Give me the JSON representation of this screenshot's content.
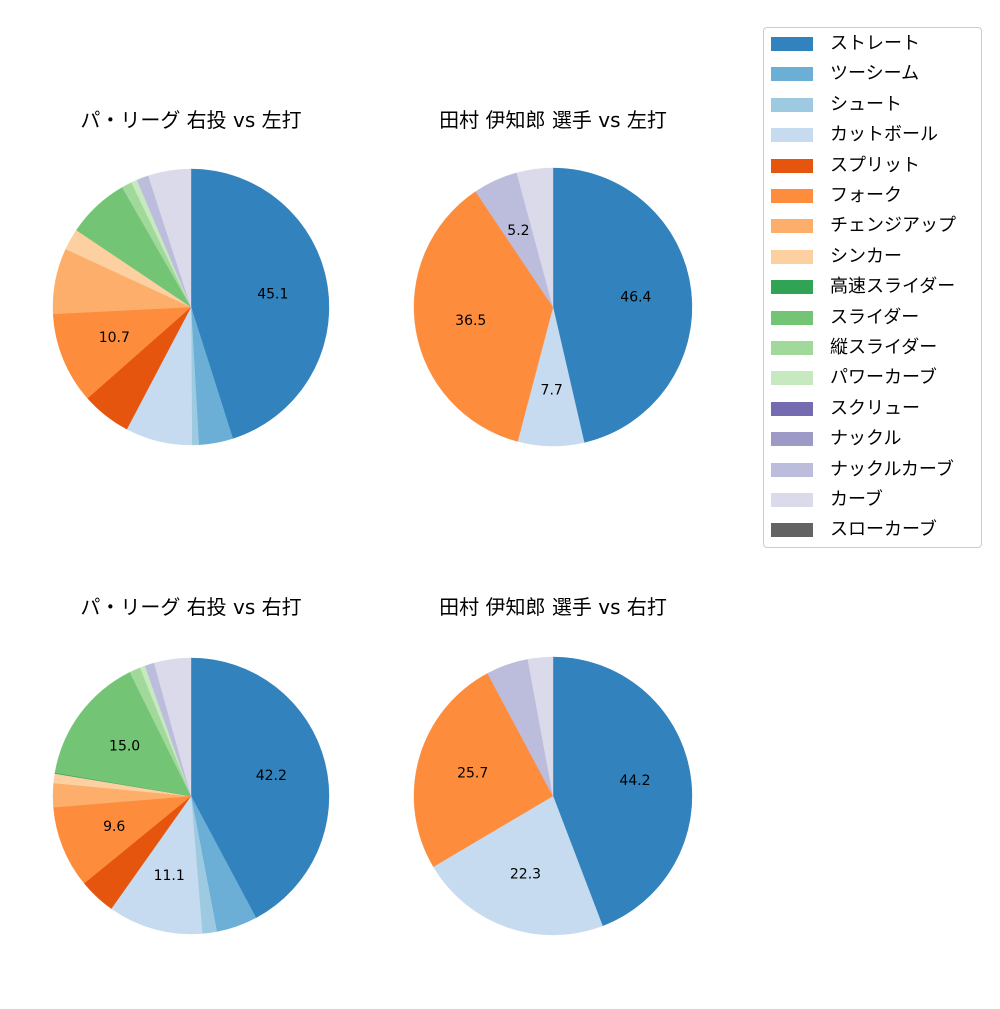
{
  "legend": {
    "items": [
      {
        "label": "ストレート",
        "color": "#3182bd"
      },
      {
        "label": "ツーシーム",
        "color": "#6baed6"
      },
      {
        "label": "シュート",
        "color": "#9ecae1"
      },
      {
        "label": "カットボール",
        "color": "#c6dbef"
      },
      {
        "label": "スプリット",
        "color": "#e6550d"
      },
      {
        "label": "フォーク",
        "color": "#fd8d3c"
      },
      {
        "label": "チェンジアップ",
        "color": "#fdae6b"
      },
      {
        "label": "シンカー",
        "color": "#fdd0a2"
      },
      {
        "label": "高速スライダー",
        "color": "#31a354"
      },
      {
        "label": "スライダー",
        "color": "#74c476"
      },
      {
        "label": "縦スライダー",
        "color": "#a1d99b"
      },
      {
        "label": "パワーカーブ",
        "color": "#c7e9c0"
      },
      {
        "label": "スクリュー",
        "color": "#756bb1"
      },
      {
        "label": "ナックル",
        "color": "#9e9ac8"
      },
      {
        "label": "ナックルカーブ",
        "color": "#bcbddc"
      },
      {
        "label": "カーブ",
        "color": "#dadaeb"
      },
      {
        "label": "スローカーブ",
        "color": "#636363"
      }
    ]
  },
  "chart_data": [
    {
      "type": "pie",
      "title": "パ・リーグ 右投 vs 左打",
      "categories": [
        "ストレート",
        "ツーシーム",
        "シュート",
        "カットボール",
        "スプリット",
        "フォーク",
        "チェンジアップ",
        "シンカー",
        "高速スライダー",
        "スライダー",
        "縦スライダー",
        "パワーカーブ",
        "スクリュー",
        "ナックル",
        "ナックルカーブ",
        "カーブ",
        "スローカーブ"
      ],
      "values": [
        45.1,
        4.0,
        0.8,
        7.8,
        5.8,
        10.7,
        7.7,
        2.5,
        0.0,
        7.3,
        1.2,
        0.7,
        0.0,
        0.0,
        1.4,
        5.0,
        0.0
      ],
      "labeled_values": [
        45.1,
        10.7
      ],
      "start_angle": 90,
      "direction": "clockwise"
    },
    {
      "type": "pie",
      "title": "田村 伊知郎 選手 vs 左打",
      "categories": [
        "ストレート",
        "カットボール",
        "フォーク",
        "ナックルカーブ",
        "カーブ"
      ],
      "values": [
        46.4,
        7.7,
        36.5,
        5.2,
        4.2
      ],
      "labeled_values": [
        46.4,
        7.7,
        36.5,
        5.2
      ],
      "start_angle": 90,
      "direction": "clockwise"
    },
    {
      "type": "pie",
      "title": "パ・リーグ 右投 vs 右打",
      "categories": [
        "ストレート",
        "ツーシーム",
        "シュート",
        "カットボール",
        "スプリット",
        "フォーク",
        "チェンジアップ",
        "シンカー",
        "高速スライダー",
        "スライダー",
        "縦スライダー",
        "パワーカーブ",
        "スクリュー",
        "ナックル",
        "ナックルカーブ",
        "カーブ",
        "スローカーブ"
      ],
      "values": [
        42.2,
        4.8,
        1.7,
        11.1,
        4.3,
        9.6,
        2.8,
        1.1,
        0.1,
        15.0,
        1.3,
        0.6,
        0.0,
        0.0,
        1.1,
        4.3,
        0.0
      ],
      "labeled_values": [
        42.2,
        11.1,
        9.6,
        15.0
      ],
      "start_angle": 90,
      "direction": "clockwise"
    },
    {
      "type": "pie",
      "title": "田村 伊知郎 選手 vs 右打",
      "categories": [
        "ストレート",
        "カットボール",
        "フォーク",
        "ナックルカーブ",
        "カーブ"
      ],
      "values": [
        44.2,
        22.3,
        25.7,
        4.9,
        2.9
      ],
      "labeled_values": [
        44.2,
        22.3,
        25.7
      ],
      "start_angle": 90,
      "direction": "clockwise"
    }
  ],
  "panels": [
    {
      "title": "パ・リーグ 右投 vs 左打"
    },
    {
      "title": "田村 伊知郎 選手 vs 左打"
    },
    {
      "title": "パ・リーグ 右投 vs 右打"
    },
    {
      "title": "田村 伊知郎 選手 vs 右打"
    }
  ]
}
